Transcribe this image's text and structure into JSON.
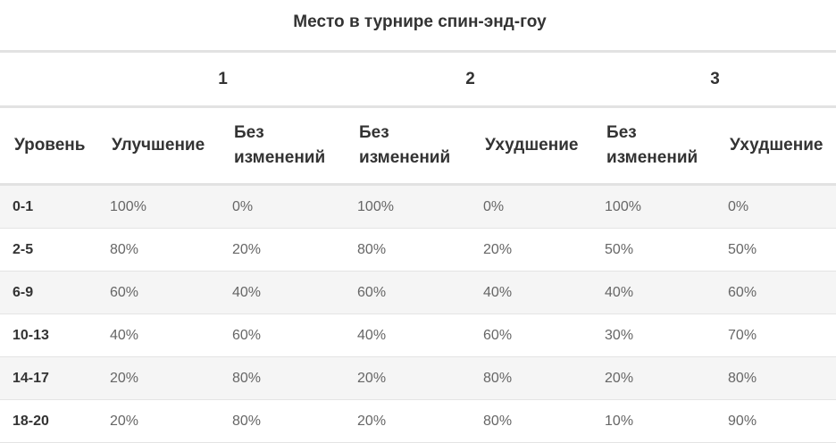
{
  "title": "Место в турнире спин-энд-гоу",
  "places": [
    "1",
    "2",
    "3"
  ],
  "headers": {
    "level": "Уровень",
    "improve": "Улучшение",
    "same_line1": "Без",
    "same_line2": "изменений",
    "worse": "Ухудшение"
  },
  "rows": [
    {
      "level": "0-1",
      "v": [
        "100%",
        "0%",
        "100%",
        "0%",
        "100%",
        "0%"
      ]
    },
    {
      "level": "2-5",
      "v": [
        "80%",
        "20%",
        "80%",
        "20%",
        "50%",
        "50%"
      ]
    },
    {
      "level": "6-9",
      "v": [
        "60%",
        "40%",
        "60%",
        "40%",
        "40%",
        "60%"
      ]
    },
    {
      "level": "10-13",
      "v": [
        "40%",
        "60%",
        "40%",
        "60%",
        "30%",
        "70%"
      ]
    },
    {
      "level": "14-17",
      "v": [
        "20%",
        "80%",
        "20%",
        "80%",
        "20%",
        "80%"
      ]
    },
    {
      "level": "18-20",
      "v": [
        "20%",
        "80%",
        "20%",
        "80%",
        "10%",
        "90%"
      ]
    }
  ]
}
